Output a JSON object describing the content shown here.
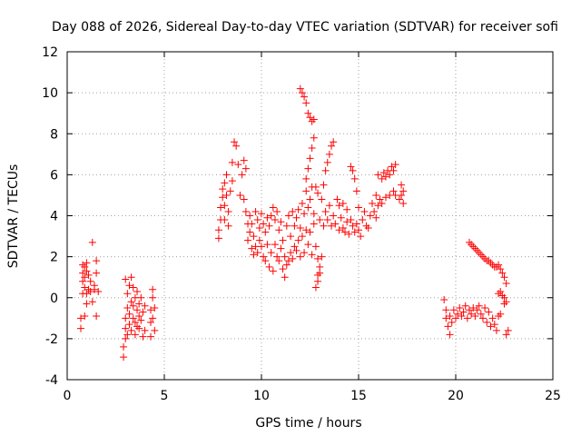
{
  "chart_data": {
    "type": "scatter",
    "title": "Day 088 of 2026, Sidereal Day-to-day VTEC variation (SDTVAR) for receiver sofi",
    "xlabel": "GPS time / hours",
    "ylabel": "SDTVAR / TECUs",
    "xlim": [
      0,
      25
    ],
    "ylim": [
      -4,
      12
    ],
    "xticks": [
      0,
      5,
      10,
      15,
      20,
      25
    ],
    "yticks": [
      -4,
      -2,
      0,
      2,
      4,
      6,
      8,
      10,
      12
    ],
    "grid": true,
    "marker": "plus",
    "color": "#ff0000",
    "series": [
      {
        "name": "SDTVAR",
        "points": [
          [
            0.7,
            -1.5
          ],
          [
            0.7,
            -1.0
          ],
          [
            0.8,
            0.2
          ],
          [
            0.8,
            0.8
          ],
          [
            0.8,
            1.2
          ],
          [
            0.8,
            1.6
          ],
          [
            0.9,
            -0.9
          ],
          [
            0.9,
            0.5
          ],
          [
            0.9,
            1.0
          ],
          [
            0.9,
            1.5
          ],
          [
            1.0,
            -0.3
          ],
          [
            1.0,
            0.2
          ],
          [
            1.0,
            1.3
          ],
          [
            1.0,
            1.7
          ],
          [
            1.1,
            0.4
          ],
          [
            1.1,
            1.1
          ],
          [
            1.2,
            0.3
          ],
          [
            1.2,
            0.8
          ],
          [
            1.3,
            2.7
          ],
          [
            1.3,
            -0.2
          ],
          [
            1.4,
            0.4
          ],
          [
            1.4,
            0.6
          ],
          [
            1.5,
            1.8
          ],
          [
            1.5,
            1.2
          ],
          [
            1.5,
            -0.9
          ],
          [
            1.6,
            0.3
          ],
          [
            2.9,
            -2.9
          ],
          [
            2.9,
            -2.4
          ],
          [
            3.0,
            -2.0
          ],
          [
            3.0,
            -1.5
          ],
          [
            3.0,
            -1.0
          ],
          [
            3.0,
            0.9
          ],
          [
            3.1,
            -1.8
          ],
          [
            3.1,
            -0.5
          ],
          [
            3.1,
            0.2
          ],
          [
            3.2,
            -1.3
          ],
          [
            3.2,
            -0.8
          ],
          [
            3.2,
            0.6
          ],
          [
            3.3,
            -1.6
          ],
          [
            3.3,
            -0.2
          ],
          [
            3.3,
            1.0
          ],
          [
            3.4,
            -1.0
          ],
          [
            3.4,
            -0.4
          ],
          [
            3.4,
            0.5
          ],
          [
            3.5,
            -1.8
          ],
          [
            3.5,
            -1.2
          ],
          [
            3.5,
            0.0
          ],
          [
            3.6,
            -1.4
          ],
          [
            3.6,
            -0.6
          ],
          [
            3.6,
            0.3
          ],
          [
            3.7,
            -1.5
          ],
          [
            3.7,
            -0.9
          ],
          [
            3.7,
            -0.3
          ],
          [
            3.8,
            -1.1
          ],
          [
            3.8,
            0.0
          ],
          [
            3.9,
            -0.7
          ],
          [
            3.9,
            -1.9
          ],
          [
            4.0,
            -1.6
          ],
          [
            4.0,
            -0.4
          ],
          [
            4.3,
            -1.9
          ],
          [
            4.3,
            -1.2
          ],
          [
            4.3,
            -0.6
          ],
          [
            4.4,
            0.0
          ],
          [
            4.4,
            0.4
          ],
          [
            4.4,
            -1.0
          ],
          [
            4.5,
            -0.5
          ],
          [
            4.5,
            -1.6
          ],
          [
            7.8,
            2.9
          ],
          [
            7.8,
            3.3
          ],
          [
            7.9,
            3.8
          ],
          [
            7.9,
            4.4
          ],
          [
            8.0,
            4.9
          ],
          [
            8.0,
            5.3
          ],
          [
            8.1,
            3.8
          ],
          [
            8.1,
            4.5
          ],
          [
            8.1,
            5.6
          ],
          [
            8.2,
            5.0
          ],
          [
            8.2,
            6.0
          ],
          [
            8.3,
            4.2
          ],
          [
            8.3,
            3.5
          ],
          [
            8.4,
            5.2
          ],
          [
            8.5,
            5.7
          ],
          [
            8.5,
            6.6
          ],
          [
            8.6,
            7.6
          ],
          [
            8.7,
            7.4
          ],
          [
            8.8,
            6.5
          ],
          [
            8.9,
            5.0
          ],
          [
            9.0,
            6.0
          ],
          [
            9.1,
            6.7
          ],
          [
            9.2,
            6.3
          ],
          [
            9.1,
            4.8
          ],
          [
            9.2,
            4.2
          ],
          [
            9.3,
            3.6
          ],
          [
            9.3,
            2.8
          ],
          [
            9.4,
            3.2
          ],
          [
            9.4,
            4.0
          ],
          [
            9.5,
            2.4
          ],
          [
            9.5,
            3.6
          ],
          [
            9.6,
            2.1
          ],
          [
            9.6,
            3.0
          ],
          [
            9.7,
            4.2
          ],
          [
            9.7,
            2.5
          ],
          [
            9.8,
            3.8
          ],
          [
            9.8,
            2.2
          ],
          [
            9.9,
            3.4
          ],
          [
            9.9,
            2.8
          ],
          [
            10.0,
            4.1
          ],
          [
            10.0,
            2.5
          ],
          [
            10.1,
            2.0
          ],
          [
            10.1,
            3.6
          ],
          [
            10.2,
            3.2
          ],
          [
            10.2,
            1.8
          ],
          [
            10.3,
            2.6
          ],
          [
            10.3,
            3.9
          ],
          [
            10.4,
            3.5
          ],
          [
            10.4,
            1.5
          ],
          [
            10.5,
            4.0
          ],
          [
            10.5,
            2.2
          ],
          [
            10.6,
            4.4
          ],
          [
            10.6,
            1.3
          ],
          [
            10.7,
            3.8
          ],
          [
            10.7,
            2.6
          ],
          [
            10.8,
            4.2
          ],
          [
            10.8,
            2.0
          ],
          [
            10.9,
            3.3
          ],
          [
            10.9,
            1.8
          ],
          [
            11.0,
            2.4
          ],
          [
            11.0,
            3.7
          ],
          [
            11.1,
            1.4
          ],
          [
            11.1,
            2.8
          ],
          [
            11.2,
            1.0
          ],
          [
            11.2,
            2.0
          ],
          [
            11.3,
            1.6
          ],
          [
            11.3,
            3.5
          ],
          [
            11.4,
            1.8
          ],
          [
            11.4,
            4.0
          ],
          [
            11.5,
            2.2
          ],
          [
            11.5,
            3.0
          ],
          [
            11.6,
            1.9
          ],
          [
            11.6,
            4.2
          ],
          [
            11.7,
            2.5
          ],
          [
            11.7,
            3.5
          ],
          [
            11.8,
            2.3
          ],
          [
            11.8,
            3.9
          ],
          [
            11.9,
            2.8
          ],
          [
            11.9,
            4.3
          ],
          [
            12.0,
            2.0
          ],
          [
            12.0,
            3.4
          ],
          [
            12.1,
            3.0
          ],
          [
            12.1,
            4.6
          ],
          [
            12.2,
            2.2
          ],
          [
            12.2,
            4.1
          ],
          [
            12.3,
            3.3
          ],
          [
            12.3,
            5.2
          ],
          [
            12.4,
            2.6
          ],
          [
            12.4,
            4.4
          ],
          [
            12.5,
            3.2
          ],
          [
            12.5,
            4.8
          ],
          [
            12.6,
            2.1
          ],
          [
            12.6,
            5.4
          ],
          [
            12.7,
            3.6
          ],
          [
            12.7,
            4.1
          ],
          [
            12.0,
            10.2
          ],
          [
            12.1,
            10.0
          ],
          [
            12.2,
            9.8
          ],
          [
            12.3,
            9.5
          ],
          [
            12.4,
            9.0
          ],
          [
            12.5,
            8.8
          ],
          [
            12.6,
            8.6
          ],
          [
            12.7,
            8.7
          ],
          [
            12.3,
            5.8
          ],
          [
            12.4,
            6.3
          ],
          [
            12.5,
            6.8
          ],
          [
            12.6,
            7.3
          ],
          [
            12.7,
            7.8
          ],
          [
            12.8,
            5.4
          ],
          [
            12.9,
            5.1
          ],
          [
            12.8,
            2.5
          ],
          [
            12.9,
            1.9
          ],
          [
            12.9,
            1.1
          ],
          [
            12.8,
            0.5
          ],
          [
            12.9,
            0.8
          ],
          [
            13.0,
            1.5
          ],
          [
            13.0,
            1.2
          ],
          [
            13.1,
            2.0
          ],
          [
            13.0,
            3.8
          ],
          [
            13.1,
            4.8
          ],
          [
            13.2,
            5.5
          ],
          [
            13.2,
            3.5
          ],
          [
            13.3,
            6.2
          ],
          [
            13.3,
            4.2
          ],
          [
            13.4,
            6.6
          ],
          [
            13.4,
            3.8
          ],
          [
            13.5,
            7.0
          ],
          [
            13.5,
            4.5
          ],
          [
            13.6,
            7.4
          ],
          [
            13.6,
            3.5
          ],
          [
            13.7,
            7.6
          ],
          [
            13.7,
            4.0
          ],
          [
            13.8,
            3.6
          ],
          [
            13.9,
            4.8
          ],
          [
            14.0,
            3.3
          ],
          [
            14.0,
            4.5
          ],
          [
            14.1,
            3.9
          ],
          [
            14.2,
            3.4
          ],
          [
            14.2,
            4.6
          ],
          [
            14.3,
            3.2
          ],
          [
            14.4,
            3.7
          ],
          [
            14.4,
            4.3
          ],
          [
            14.5,
            3.1
          ],
          [
            14.6,
            3.8
          ],
          [
            14.6,
            6.4
          ],
          [
            14.7,
            6.2
          ],
          [
            14.7,
            3.5
          ],
          [
            14.8,
            5.8
          ],
          [
            14.8,
            3.2
          ],
          [
            14.9,
            5.2
          ],
          [
            14.9,
            3.6
          ],
          [
            15.0,
            3.3
          ],
          [
            15.0,
            4.4
          ],
          [
            15.1,
            3.0
          ],
          [
            15.2,
            3.8
          ],
          [
            15.3,
            4.2
          ],
          [
            15.4,
            3.5
          ],
          [
            15.5,
            3.4
          ],
          [
            15.6,
            4.0
          ],
          [
            15.7,
            4.6
          ],
          [
            15.8,
            4.2
          ],
          [
            15.9,
            5.0
          ],
          [
            15.9,
            3.9
          ],
          [
            16.0,
            6.0
          ],
          [
            16.0,
            4.5
          ],
          [
            16.1,
            4.8
          ],
          [
            16.2,
            5.8
          ],
          [
            16.2,
            4.6
          ],
          [
            16.3,
            6.1
          ],
          [
            16.4,
            5.9
          ],
          [
            16.4,
            4.9
          ],
          [
            16.5,
            6.2
          ],
          [
            16.6,
            6.0
          ],
          [
            16.6,
            5.0
          ],
          [
            16.7,
            6.4
          ],
          [
            16.8,
            6.2
          ],
          [
            16.8,
            5.2
          ],
          [
            16.9,
            6.5
          ],
          [
            16.9,
            5.0
          ],
          [
            17.1,
            4.8
          ],
          [
            17.2,
            5.0
          ],
          [
            17.2,
            5.5
          ],
          [
            17.3,
            5.2
          ],
          [
            17.3,
            4.6
          ],
          [
            19.4,
            -0.1
          ],
          [
            19.5,
            -1.0
          ],
          [
            19.5,
            -0.6
          ],
          [
            19.6,
            -1.4
          ],
          [
            19.7,
            -0.9
          ],
          [
            19.7,
            -1.8
          ],
          [
            19.8,
            -1.2
          ],
          [
            19.9,
            -0.6
          ],
          [
            20.0,
            -1.0
          ],
          [
            20.1,
            -0.8
          ],
          [
            20.2,
            -0.5
          ],
          [
            20.3,
            -0.9
          ],
          [
            20.4,
            -0.7
          ],
          [
            20.5,
            -0.4
          ],
          [
            20.6,
            -1.0
          ],
          [
            20.7,
            -0.6
          ],
          [
            20.8,
            -0.8
          ],
          [
            20.9,
            -0.5
          ],
          [
            21.0,
            -0.9
          ],
          [
            21.1,
            -0.6
          ],
          [
            21.2,
            -0.4
          ],
          [
            21.3,
            -0.8
          ],
          [
            21.4,
            -1.0
          ],
          [
            21.5,
            -0.5
          ],
          [
            21.6,
            -1.2
          ],
          [
            21.7,
            -0.7
          ],
          [
            21.8,
            -1.4
          ],
          [
            21.9,
            -1.0
          ],
          [
            22.0,
            -1.3
          ],
          [
            22.1,
            -1.6
          ],
          [
            22.2,
            -0.9
          ],
          [
            22.2,
            0.2
          ],
          [
            22.3,
            0.3
          ],
          [
            22.3,
            -0.8
          ],
          [
            22.4,
            0.1
          ],
          [
            22.5,
            -0.3
          ],
          [
            22.5,
            0.0
          ],
          [
            22.6,
            -0.2
          ],
          [
            22.6,
            -1.8
          ],
          [
            22.7,
            -1.6
          ],
          [
            20.7,
            2.7
          ],
          [
            20.8,
            2.6
          ],
          [
            20.9,
            2.5
          ],
          [
            21.0,
            2.4
          ],
          [
            21.1,
            2.3
          ],
          [
            21.2,
            2.2
          ],
          [
            21.3,
            2.1
          ],
          [
            21.4,
            2.0
          ],
          [
            21.5,
            1.9
          ],
          [
            21.6,
            1.8
          ],
          [
            21.7,
            1.8
          ],
          [
            21.8,
            1.7
          ],
          [
            21.9,
            1.6
          ],
          [
            22.0,
            1.5
          ],
          [
            22.1,
            1.5
          ],
          [
            22.2,
            1.6
          ],
          [
            22.3,
            1.4
          ],
          [
            22.4,
            1.2
          ],
          [
            22.5,
            1.0
          ],
          [
            22.6,
            0.7
          ]
        ]
      }
    ]
  }
}
